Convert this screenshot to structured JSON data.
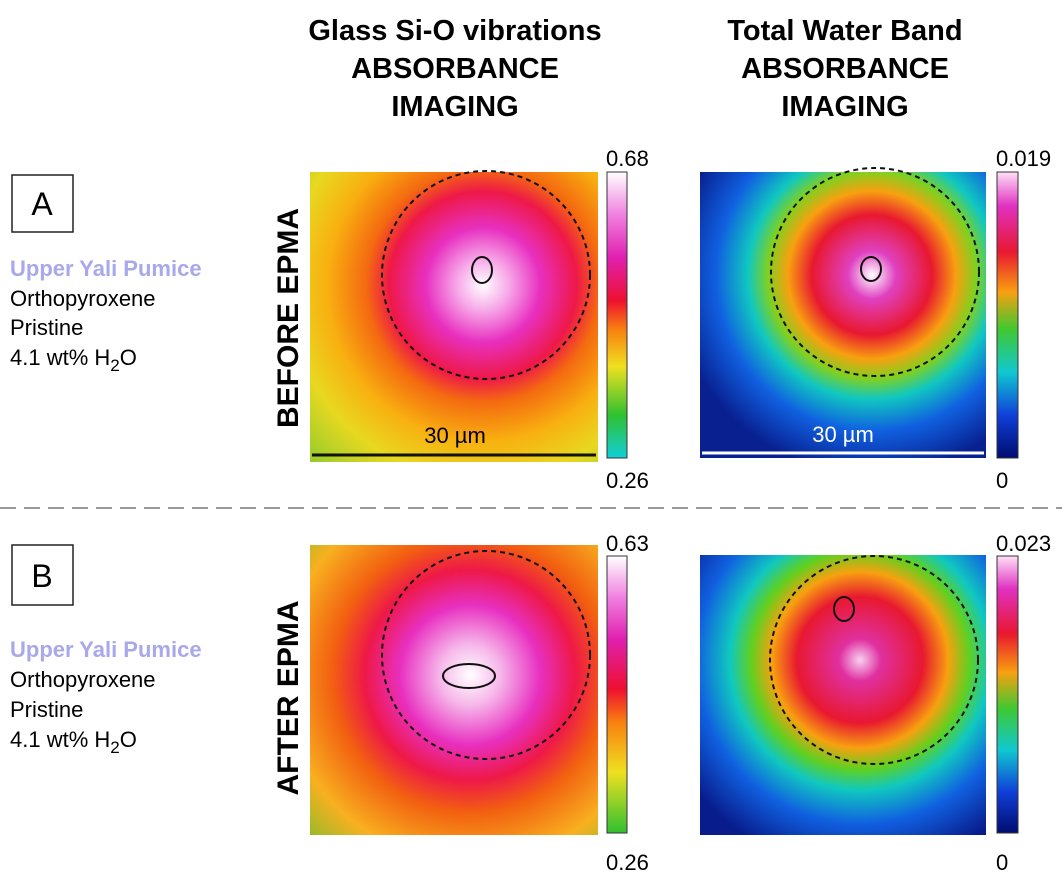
{
  "columns": [
    {
      "line1": "Glass Si-O vibrations",
      "line2": "ABSORBANCE",
      "line3": "IMAGING"
    },
    {
      "line1": "Total Water Band",
      "line2": "ABSORBANCE",
      "line3": "IMAGING"
    }
  ],
  "rows": [
    {
      "panel": "A",
      "sample": "Upper Yali Pumice",
      "mineral": "Orthopyroxene",
      "condition": "Pristine",
      "water": {
        "prefix": "4.1 wt% H",
        "sub": "2",
        "suffix": "O"
      },
      "label": "BEFORE EPMA",
      "scales": [
        {
          "max": 0.68,
          "min": 0.26,
          "scale_bar": "30 µm"
        },
        {
          "max": 0.019,
          "min": 0,
          "scale_bar": "30 µm"
        }
      ]
    },
    {
      "panel": "B",
      "sample": "Upper Yali Pumice",
      "mineral": "Orthopyroxene",
      "condition": "Pristine",
      "water": {
        "prefix": "4.1 wt% H",
        "sub": "2",
        "suffix": "O"
      },
      "label": "AFTER EPMA",
      "scales": [
        {
          "max": 0.63,
          "min": 0.26
        },
        {
          "max": 0.023,
          "min": 0
        }
      ]
    }
  ]
}
